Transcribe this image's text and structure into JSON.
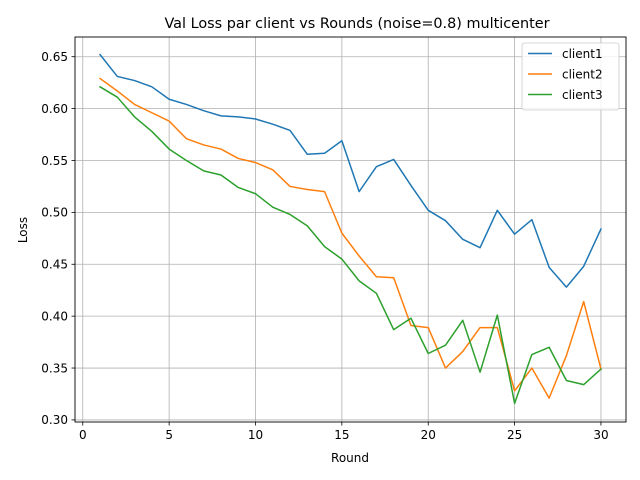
{
  "chart_data": {
    "type": "line",
    "title": "Val Loss par client vs Rounds (noise=0.8) multicenter",
    "xlabel": "Round",
    "ylabel": "Loss",
    "xlim": [
      -0.45,
      31.45
    ],
    "ylim": [
      0.298,
      0.669
    ],
    "xticks": [
      "0",
      "5",
      "10",
      "15",
      "20",
      "25",
      "30"
    ],
    "yticks": [
      "0.30",
      "0.35",
      "0.40",
      "0.45",
      "0.50",
      "0.55",
      "0.60",
      "0.65"
    ],
    "grid": true,
    "legend_position": "upper right",
    "x": [
      1,
      2,
      3,
      4,
      5,
      6,
      7,
      8,
      9,
      10,
      11,
      12,
      13,
      14,
      15,
      16,
      17,
      18,
      19,
      20,
      21,
      22,
      23,
      24,
      25,
      26,
      27,
      28,
      29,
      30
    ],
    "series": [
      {
        "name": "client1",
        "color": "#1f77b4",
        "values": [
          0.652,
          0.631,
          0.627,
          0.621,
          0.609,
          0.604,
          0.598,
          0.593,
          0.592,
          0.59,
          0.585,
          0.579,
          0.556,
          0.557,
          0.569,
          0.52,
          0.544,
          0.551,
          0.526,
          0.502,
          0.492,
          0.474,
          0.466,
          0.502,
          0.479,
          0.493,
          0.447,
          0.428,
          0.448,
          0.484
        ]
      },
      {
        "name": "client2",
        "color": "#ff7f0e",
        "values": [
          0.629,
          0.617,
          0.604,
          0.596,
          0.588,
          0.571,
          0.565,
          0.561,
          0.552,
          0.548,
          0.541,
          0.525,
          0.522,
          0.52,
          0.48,
          0.458,
          0.438,
          0.437,
          0.391,
          0.389,
          0.35,
          0.366,
          0.389,
          0.389,
          0.328,
          0.35,
          0.321,
          0.362,
          0.414,
          0.349
        ]
      },
      {
        "name": "client3",
        "color": "#2ca02c",
        "values": [
          0.621,
          0.611,
          0.592,
          0.578,
          0.561,
          0.55,
          0.54,
          0.536,
          0.524,
          0.518,
          0.505,
          0.498,
          0.487,
          0.467,
          0.455,
          0.434,
          0.422,
          0.387,
          0.398,
          0.364,
          0.372,
          0.396,
          0.346,
          0.401,
          0.316,
          0.363,
          0.37,
          0.338,
          0.334,
          0.349
        ]
      }
    ]
  }
}
